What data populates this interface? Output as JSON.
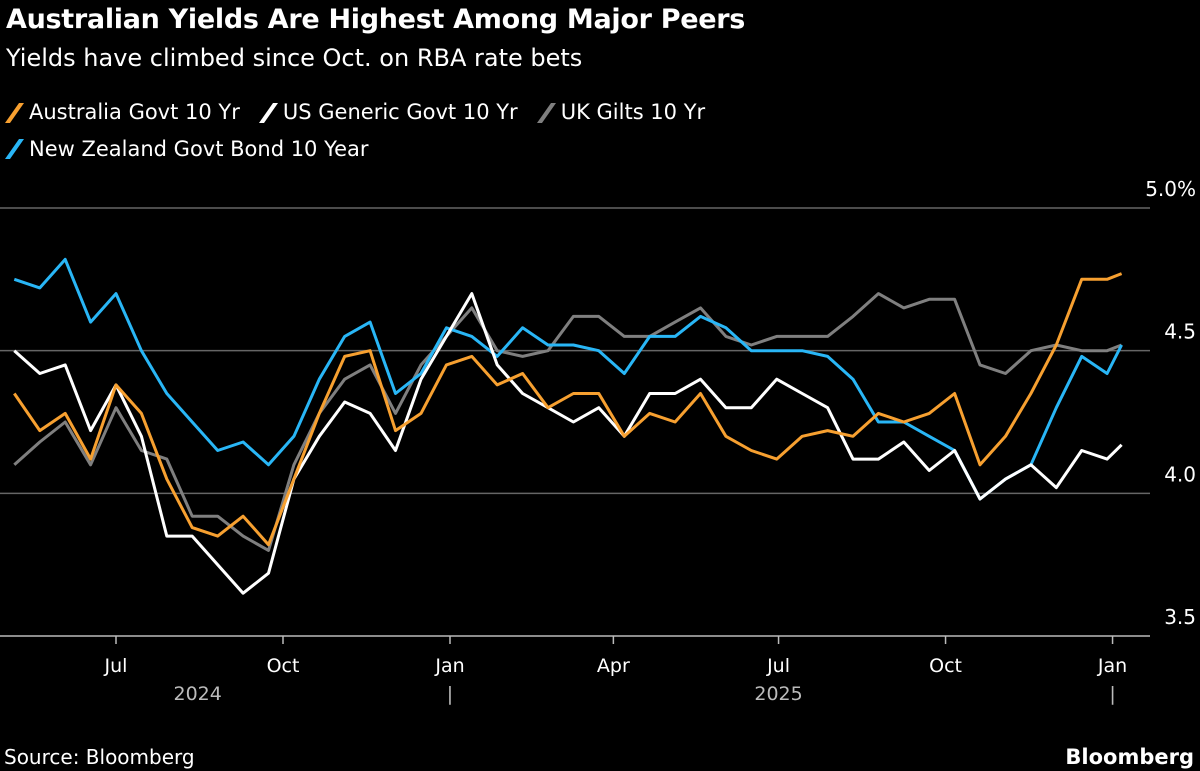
{
  "title": "Australian Yields Are Highest Among Major Peers",
  "subtitle": "Yields have climbed since Oct. on RBA rate bets",
  "source": "Source: Bloomberg",
  "brand": "Bloomberg",
  "chart_data": {
    "type": "line",
    "title": "Australian Yields Are Highest Among Major Peers",
    "subtitle": "Yields have climbed since Oct. on RBA rate bets",
    "ylim": [
      3.5,
      5.0
    ],
    "yticks": [
      {
        "value": 5.0,
        "label": "5.0%"
      },
      {
        "value": 4.5,
        "label": "4.5"
      },
      {
        "value": 4.0,
        "label": "4.0"
      },
      {
        "value": 3.5,
        "label": "3.5"
      }
    ],
    "xticks": [
      {
        "date": "2024-07-01",
        "label": "Jul"
      },
      {
        "date": "2024-10-01",
        "label": "Oct"
      },
      {
        "date": "2025-01-01",
        "label": "Jan"
      },
      {
        "date": "2025-04-01",
        "label": "Apr"
      },
      {
        "date": "2025-07-01",
        "label": "Jul"
      },
      {
        "date": "2025-10-01",
        "label": "Oct"
      },
      {
        "date": "2026-01-01",
        "label": "Jan"
      }
    ],
    "year_labels": [
      {
        "label": "2024",
        "date": "2024-08-15"
      },
      {
        "label": "|",
        "date": "2025-01-01"
      },
      {
        "label": "2025",
        "date": "2025-07-01"
      },
      {
        "label": "|",
        "date": "2026-01-01"
      }
    ],
    "grid": true,
    "legend_position": "top-left",
    "x": [
      "2024-05-06",
      "2024-05-20",
      "2024-06-03",
      "2024-06-17",
      "2024-07-01",
      "2024-07-15",
      "2024-07-29",
      "2024-08-12",
      "2024-08-26",
      "2024-09-09",
      "2024-09-23",
      "2024-10-07",
      "2024-10-21",
      "2024-11-04",
      "2024-11-18",
      "2024-12-02",
      "2024-12-16",
      "2024-12-30",
      "2025-01-13",
      "2025-01-27",
      "2025-02-10",
      "2025-02-24",
      "2025-03-10",
      "2025-03-24",
      "2025-04-07",
      "2025-04-21",
      "2025-05-05",
      "2025-05-19",
      "2025-06-02",
      "2025-06-16",
      "2025-06-30",
      "2025-07-14",
      "2025-07-28",
      "2025-08-11",
      "2025-08-25",
      "2025-09-08",
      "2025-09-22",
      "2025-10-06",
      "2025-10-20",
      "2025-11-03",
      "2025-11-17",
      "2025-12-01",
      "2025-12-15",
      "2025-12-29",
      "2026-01-06"
    ],
    "series": [
      {
        "name": "UK Gilts 10 Yr",
        "color": "#7f7f7f",
        "values": [
          4.1,
          4.18,
          4.25,
          4.1,
          4.3,
          4.15,
          4.12,
          3.92,
          3.92,
          3.85,
          3.8,
          4.1,
          4.28,
          4.4,
          4.45,
          4.28,
          4.45,
          4.55,
          4.65,
          4.5,
          4.48,
          4.5,
          4.62,
          4.62,
          4.55,
          4.55,
          4.6,
          4.65,
          4.55,
          4.52,
          4.55,
          4.55,
          4.55,
          4.62,
          4.7,
          4.65,
          4.68,
          4.68,
          4.45,
          4.42,
          4.5,
          4.52,
          4.5,
          4.5,
          4.52
        ]
      },
      {
        "name": "New Zealand Govt Bond 10 Year",
        "color": "#29b6f6",
        "values": [
          4.75,
          4.72,
          4.82,
          4.6,
          4.7,
          4.5,
          4.35,
          4.25,
          4.15,
          4.18,
          4.1,
          4.2,
          4.4,
          4.55,
          4.6,
          4.35,
          4.42,
          4.58,
          4.55,
          4.48,
          4.58,
          4.52,
          4.52,
          4.5,
          4.42,
          4.55,
          4.55,
          4.62,
          4.58,
          4.5,
          4.5,
          4.5,
          4.48,
          4.4,
          4.25,
          4.25,
          4.2,
          4.15,
          3.98,
          4.05,
          4.1,
          4.3,
          4.48,
          4.42,
          4.52
        ]
      },
      {
        "name": "US Generic Govt 10 Yr",
        "color": "#ffffff",
        "values": [
          4.5,
          4.42,
          4.45,
          4.22,
          4.38,
          4.2,
          3.85,
          3.85,
          3.75,
          3.65,
          3.72,
          4.05,
          4.2,
          4.32,
          4.28,
          4.15,
          4.4,
          4.55,
          4.7,
          4.45,
          4.35,
          4.3,
          4.25,
          4.3,
          4.2,
          4.35,
          4.35,
          4.4,
          4.3,
          4.3,
          4.4,
          4.35,
          4.3,
          4.12,
          4.12,
          4.18,
          4.08,
          4.15,
          3.98,
          4.05,
          4.1,
          4.02,
          4.15,
          4.12,
          4.17
        ]
      },
      {
        "name": "Australia Govt 10 Yr",
        "color": "#f7a030",
        "values": [
          4.35,
          4.22,
          4.28,
          4.12,
          4.38,
          4.28,
          4.05,
          3.88,
          3.85,
          3.92,
          3.82,
          4.05,
          4.28,
          4.48,
          4.5,
          4.22,
          4.28,
          4.45,
          4.48,
          4.38,
          4.42,
          4.3,
          4.35,
          4.35,
          4.2,
          4.28,
          4.25,
          4.35,
          4.2,
          4.15,
          4.12,
          4.2,
          4.22,
          4.2,
          4.28,
          4.25,
          4.28,
          4.35,
          4.1,
          4.2,
          4.35,
          4.52,
          4.75,
          4.75,
          4.77
        ]
      }
    ]
  },
  "legend": [
    {
      "label": "Australia Govt 10 Yr",
      "color": "#f7a030"
    },
    {
      "label": "US Generic Govt 10 Yr",
      "color": "#ffffff"
    },
    {
      "label": "UK Gilts 10 Yr",
      "color": "#7f7f7f"
    },
    {
      "label": "New Zealand Govt Bond 10 Year",
      "color": "#29b6f6"
    }
  ]
}
